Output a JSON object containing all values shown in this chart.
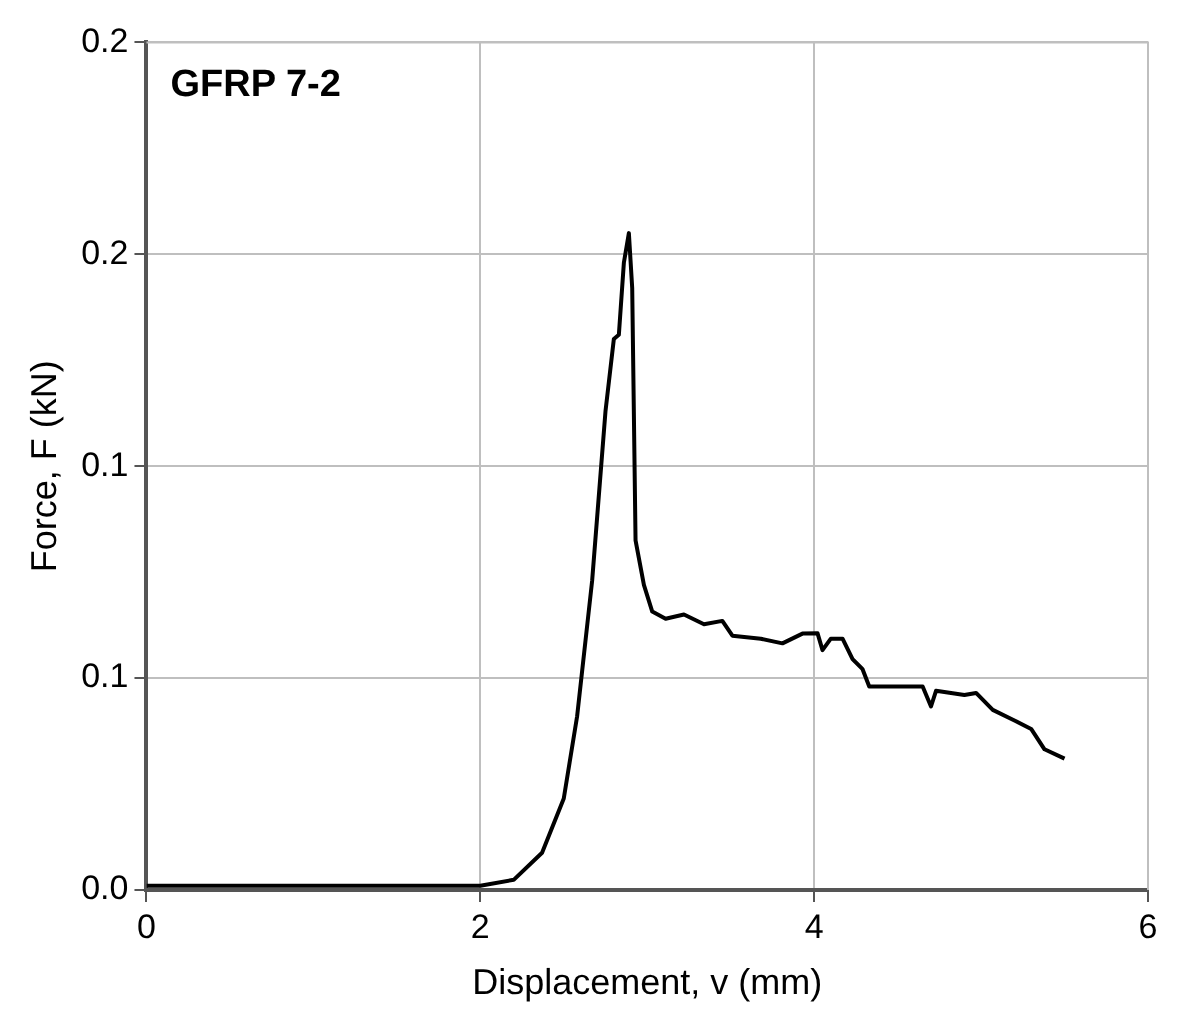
{
  "chart_data": {
    "type": "line",
    "xlabel": "Displacement, v (mm)",
    "ylabel": "Force, F (kN)",
    "annotations": [
      "GFRP 7-2"
    ],
    "xlim": [
      0,
      6
    ],
    "xticks": [
      0,
      2,
      4,
      6
    ],
    "ylim": [
      0,
      0.2
    ],
    "yticks": [
      {
        "value": 0,
        "label": "0.0"
      },
      {
        "value": 0.05,
        "label": "0.1"
      },
      {
        "value": 0.1,
        "label": "0.1"
      },
      {
        "value": 0.15,
        "label": "0.2"
      },
      {
        "value": 0.2,
        "label": "0.2"
      }
    ],
    "grid": true,
    "legend": false,
    "marker": "none",
    "line_style": "solid",
    "series": [
      {
        "color": "#000000",
        "x": [
          0,
          1,
          2,
          2.2,
          2.37,
          2.5,
          2.58,
          2.67,
          2.75,
          2.8,
          2.83,
          2.86,
          2.89,
          2.91,
          2.93,
          2.98,
          3.03,
          3.11,
          3.22,
          3.34,
          3.45,
          3.51,
          3.68,
          3.81,
          3.93,
          4.02,
          4.05,
          4.1,
          4.17,
          4.23,
          4.29,
          4.33,
          4.48,
          4.65,
          4.7,
          4.73,
          4.9,
          4.97,
          5.07,
          5.2,
          5.3,
          5.38,
          5.5
        ],
        "values": [
          0.001,
          0.001,
          0.001,
          0.0024,
          0.0088,
          0.0216,
          0.041,
          0.073,
          0.113,
          0.13,
          0.131,
          0.148,
          0.155,
          0.142,
          0.0825,
          0.072,
          0.0657,
          0.064,
          0.065,
          0.0627,
          0.0635,
          0.06,
          0.0593,
          0.0582,
          0.0605,
          0.0606,
          0.0566,
          0.0593,
          0.0593,
          0.0545,
          0.0521,
          0.048,
          0.048,
          0.048,
          0.0433,
          0.047,
          0.046,
          0.0465,
          0.0425,
          0.04,
          0.038,
          0.0332,
          0.031
        ]
      }
    ]
  }
}
